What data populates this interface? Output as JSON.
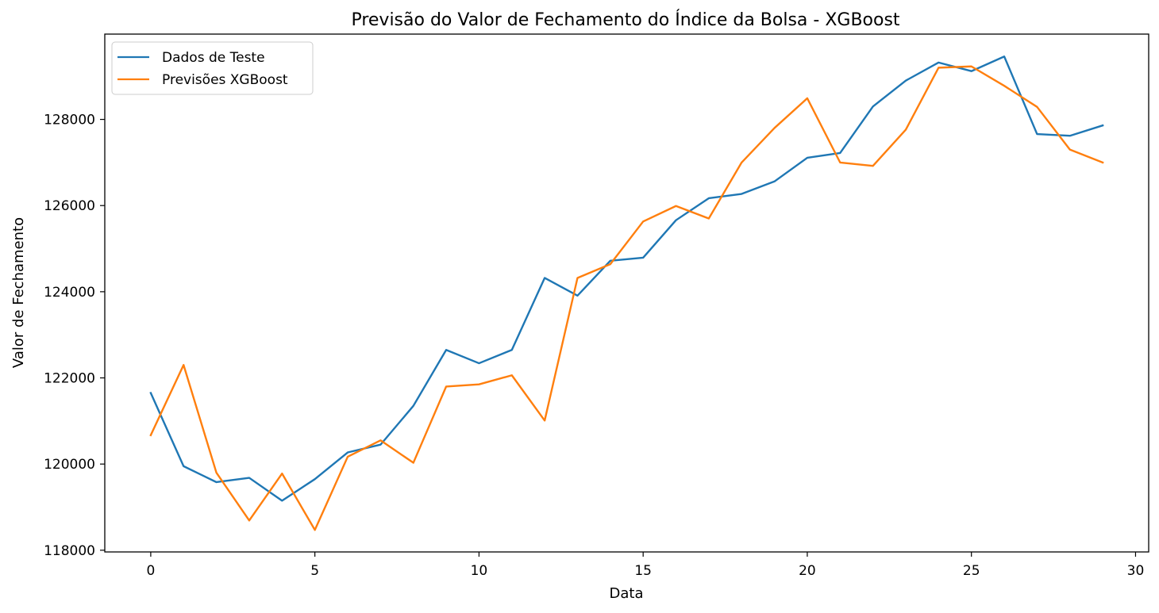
{
  "chart_data": {
    "type": "line",
    "title": "Previsão do Valor de Fechamento do Índice da Bolsa - XGBoost",
    "xlabel": "Data",
    "ylabel": "Valor de Fechamento",
    "xlim": [
      -1.4,
      30.4
    ],
    "ylim": [
      117960,
      129980
    ],
    "xticks": [
      0,
      5,
      10,
      15,
      20,
      25,
      30
    ],
    "yticks": [
      118000,
      120000,
      122000,
      124000,
      126000,
      128000
    ],
    "x": [
      0,
      1,
      2,
      3,
      4,
      5,
      6,
      7,
      8,
      9,
      10,
      11,
      12,
      13,
      14,
      15,
      16,
      17,
      18,
      19,
      20,
      21,
      22,
      23,
      24,
      25,
      26,
      27,
      28,
      29
    ],
    "series": [
      {
        "name": "Dados de Teste",
        "color": "#1f77b4",
        "values": [
          121650,
          119950,
          119580,
          119680,
          119150,
          119650,
          120270,
          120450,
          121350,
          122650,
          122340,
          122650,
          124320,
          123910,
          124720,
          124790,
          125660,
          126170,
          126270,
          126560,
          127110,
          127220,
          128300,
          128900,
          129320,
          129120,
          129460,
          127660,
          127620,
          127860
        ]
      },
      {
        "name": "Previsões XGBoost",
        "color": "#ff7f0e",
        "values": [
          120670,
          122300,
          119800,
          118690,
          119780,
          118470,
          120170,
          120550,
          120030,
          121800,
          121850,
          122060,
          121010,
          124320,
          124640,
          125630,
          125990,
          125700,
          127000,
          127800,
          128490,
          127000,
          126920,
          127760,
          129200,
          129230,
          128780,
          128290,
          127300,
          127000
        ]
      }
    ],
    "legend_position": "top-left",
    "grid": false
  }
}
